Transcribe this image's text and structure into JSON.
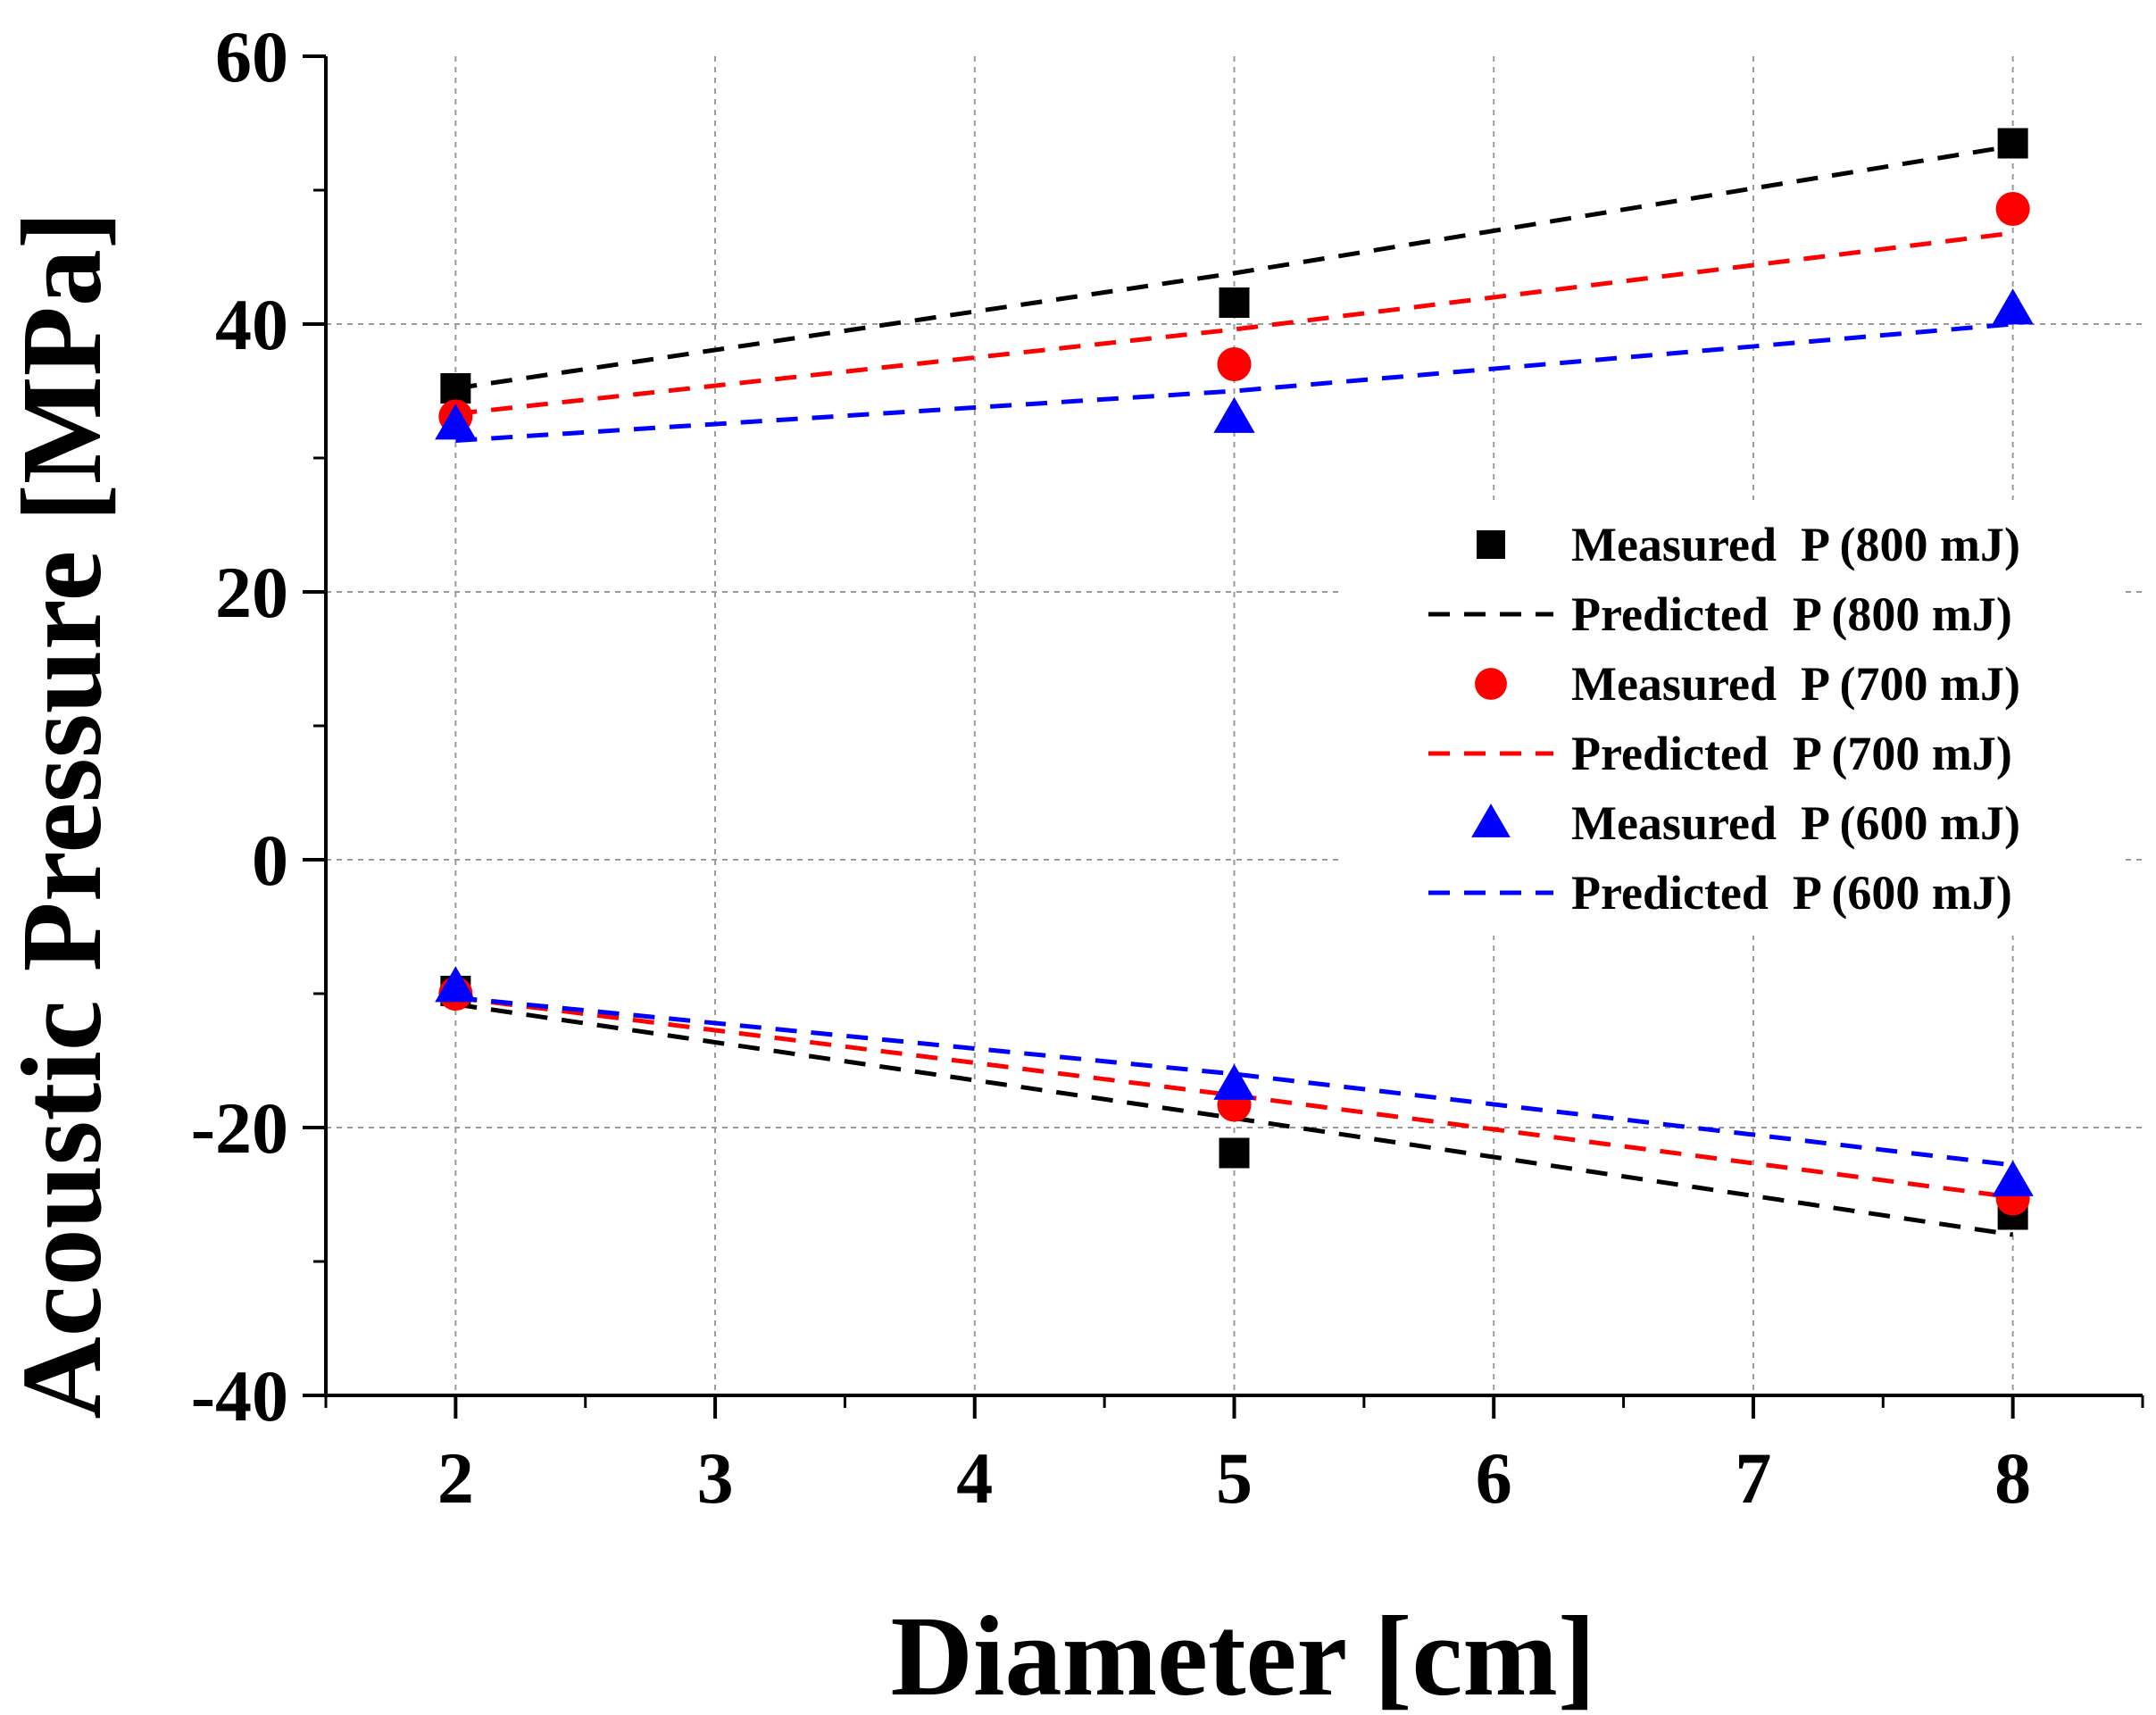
{
  "chart_data": {
    "type": "scatter",
    "title": "",
    "xlabel": "Diameter [cm]",
    "ylabel": "Acoustic Pressure [MPa]",
    "xlim": [
      1.5,
      8.5
    ],
    "ylim": [
      -40,
      60
    ],
    "xticks": [
      2,
      3,
      4,
      5,
      6,
      7,
      8
    ],
    "yticks": [
      -40,
      -20,
      0,
      20,
      40,
      60
    ],
    "xtick_labels": [
      "2",
      "3",
      "4",
      "5",
      "6",
      "7",
      "8"
    ],
    "ytick_labels": [
      "-40",
      "-20",
      "0",
      "20",
      "40",
      "60"
    ],
    "grid": true,
    "legend_position": "right",
    "series": [
      {
        "name": "Measured  P (800 mJ)",
        "kind": "marker",
        "marker": "square",
        "color": "#000000",
        "x": [
          2,
          5,
          8,
          2,
          5,
          8
        ],
        "y": [
          35.2,
          41.6,
          53.5,
          -9.8,
          -21.9,
          -26.5
        ]
      },
      {
        "name": "Predicted  P (800 mJ)",
        "kind": "dashed-line",
        "color": "#000000",
        "segments": [
          {
            "x": [
              2,
              5,
              8
            ],
            "y": [
              35.2,
              43.8,
              53.3
            ]
          },
          {
            "x": [
              2,
              5,
              8
            ],
            "y": [
              -10.8,
              -19.3,
              -28.0
            ]
          }
        ]
      },
      {
        "name": "Measured  P (700 mJ)",
        "kind": "marker",
        "marker": "circle",
        "color": "#ff0000",
        "x": [
          2,
          5,
          8,
          2,
          5,
          8
        ],
        "y": [
          33.1,
          37.0,
          48.6,
          -10.0,
          -18.3,
          -25.3
        ]
      },
      {
        "name": "Predicted  P (700 mJ)",
        "kind": "dashed-line",
        "color": "#ff0000",
        "segments": [
          {
            "x": [
              2,
              5,
              8
            ],
            "y": [
              33.3,
              39.6,
              46.8
            ]
          },
          {
            "x": [
              2,
              5,
              8
            ],
            "y": [
              -10.3,
              -17.6,
              -25.2
            ]
          }
        ]
      },
      {
        "name": "Measured  P (600 mJ)",
        "kind": "marker",
        "marker": "triangle",
        "color": "#0000ff",
        "x": [
          2,
          5,
          8,
          2,
          5,
          8
        ],
        "y": [
          32.5,
          33.0,
          41.1,
          -9.5,
          -16.8,
          -24.0
        ]
      },
      {
        "name": "Predicted  P (600 mJ)",
        "kind": "dashed-line",
        "color": "#0000ff",
        "segments": [
          {
            "x": [
              2,
              5,
              8
            ],
            "y": [
              31.3,
              35.0,
              40.0
            ]
          },
          {
            "x": [
              2,
              5,
              8
            ],
            "y": [
              -10.3,
              -16.0,
              -22.8
            ]
          }
        ]
      }
    ],
    "legend": [
      {
        "label": "Measured  P (800 mJ)",
        "symbol": "square",
        "color": "#000000"
      },
      {
        "label": "Predicted  P (800 mJ)",
        "symbol": "dash",
        "color": "#000000"
      },
      {
        "label": "Measured  P (700 mJ)",
        "symbol": "circle",
        "color": "#ff0000"
      },
      {
        "label": "Predicted  P (700 mJ)",
        "symbol": "dash",
        "color": "#ff0000"
      },
      {
        "label": "Measured  P (600 mJ)",
        "symbol": "triangle",
        "color": "#0000ff"
      },
      {
        "label": "Predicted  P (600 mJ)",
        "symbol": "dash",
        "color": "#0000ff"
      }
    ]
  }
}
